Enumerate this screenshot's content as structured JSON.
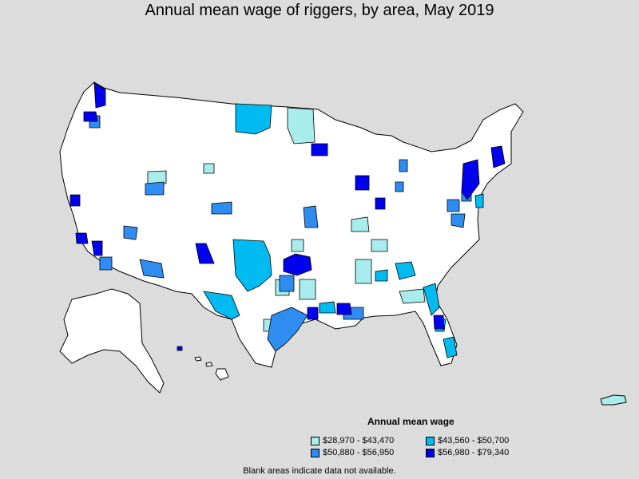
{
  "title": "Annual mean wage of riggers, by area, May 2019",
  "colors": {
    "bin1": "#a8ecec",
    "bin2": "#00baf2",
    "bin3": "#2f8cf0",
    "bin4": "#0000ee",
    "blank": "#ffffff",
    "background": "#dcdcdc"
  },
  "legend": {
    "title": "Annual mean wage",
    "items": [
      {
        "label": "$28,970 - $43,470",
        "color": "#a8ecec"
      },
      {
        "label": "$43,560 - $50,700",
        "color": "#00baf2"
      },
      {
        "label": "$50,880 - $56,950",
        "color": "#2f8cf0"
      },
      {
        "label": "$56,980 - $79,340",
        "color": "#0000ee"
      }
    ]
  },
  "note": "Blank areas indicate data not available."
}
